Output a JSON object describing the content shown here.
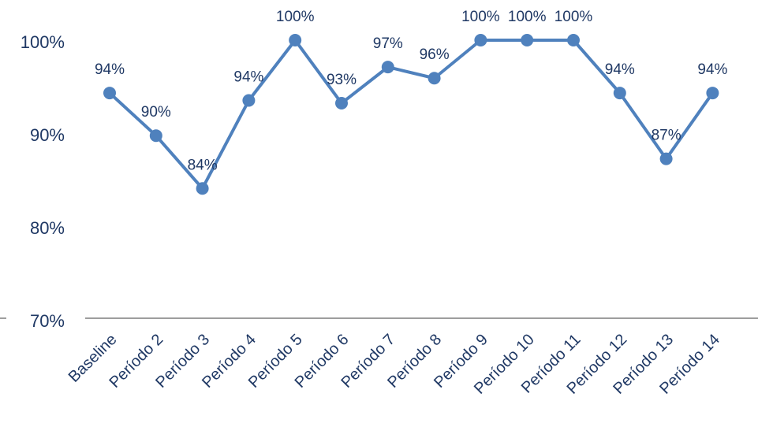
{
  "chart_data": {
    "type": "line",
    "title": "",
    "xlabel": "",
    "ylabel": "",
    "categories": [
      "Baseline",
      "Período 2",
      "Período 3",
      "Período 4",
      "Período 5",
      "Período 6",
      "Período 7",
      "Período 8",
      "Período 9",
      "Período 10",
      "Período 11",
      "Período 12",
      "Período 13",
      "Período 14"
    ],
    "series": [
      {
        "values": [
          94.3,
          89.7,
          84,
          93.5,
          100,
          93.2,
          97.1,
          95.9,
          100,
          100,
          100,
          94.3,
          87.2,
          94.3
        ],
        "data_labels": [
          "94%",
          "90%",
          "84%",
          "94%",
          "100%",
          "93%",
          "97%",
          "96%",
          "100%",
          "100%",
          "100%",
          "94%",
          "87%",
          "94%"
        ]
      }
    ],
    "ylim": [
      70,
      100
    ],
    "y_ticks": [
      100,
      90,
      80,
      70
    ],
    "y_tick_labels": [
      "100%",
      "90%",
      "80%",
      "70%"
    ],
    "grid": false,
    "legend": "none",
    "colors": {
      "line": "#4F81BD",
      "data_label": "#1F3864",
      "axis": "#7F7F7F",
      "tick_text": "#1F3864"
    }
  }
}
